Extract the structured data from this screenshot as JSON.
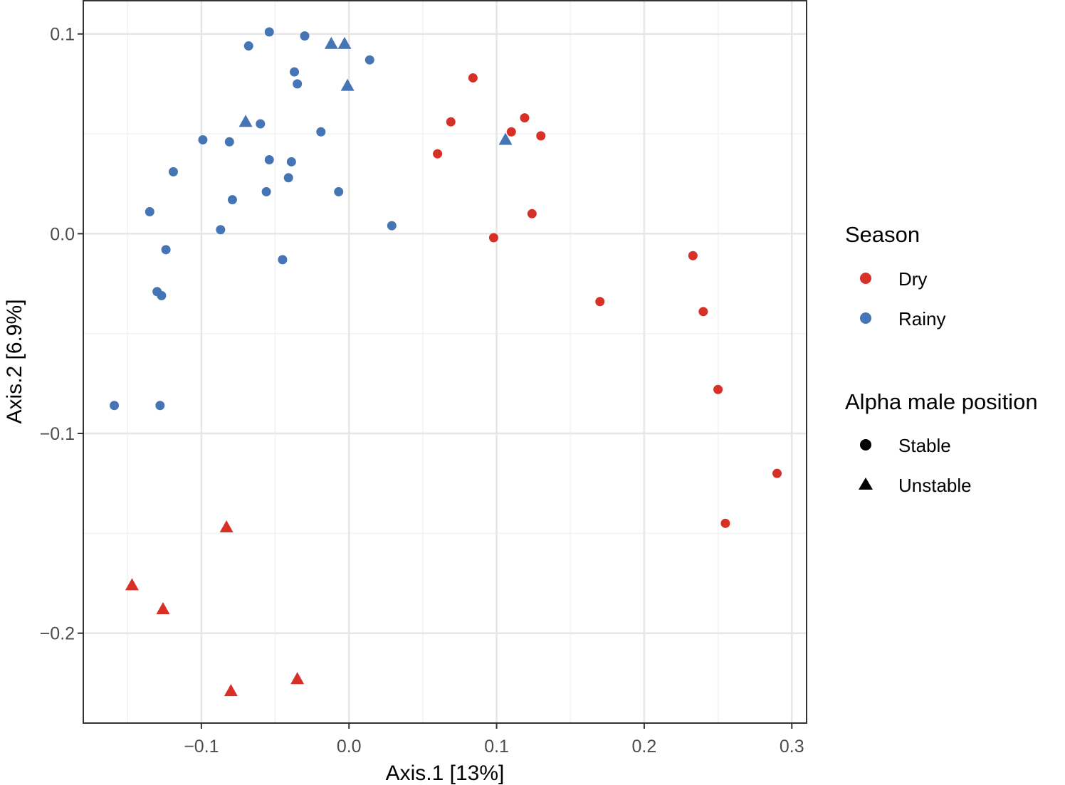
{
  "chart_data": {
    "type": "scatter",
    "title": "",
    "xlabel": "Axis.1   [13%]",
    "ylabel": "Axis.2   [6.9%]",
    "xlim": [
      -0.18,
      0.31
    ],
    "ylim": [
      -0.245,
      0.117
    ],
    "x_ticks": [
      -0.1,
      0.0,
      0.1,
      0.2,
      0.3
    ],
    "x_tick_labels": [
      "−0.1",
      "0.0",
      "0.1",
      "0.2",
      "0.3"
    ],
    "y_ticks": [
      -0.2,
      -0.1,
      0.0,
      0.1
    ],
    "y_tick_labels": [
      "−0.2",
      "−0.1",
      "0.0",
      "0.1"
    ],
    "grid": true,
    "colors": {
      "Dry": "#d73027",
      "Rainy": "#4575b4"
    },
    "legend": {
      "placement": "right",
      "season": {
        "title": "Season",
        "items": [
          "Dry",
          "Rainy"
        ]
      },
      "position": {
        "title": "Alpha male position",
        "items": [
          "Stable",
          "Unstable"
        ]
      }
    },
    "series": [
      {
        "name": "Rainy-Stable",
        "season": "Rainy",
        "shape": "Stable",
        "points": [
          [
            -0.054,
            0.101
          ],
          [
            -0.03,
            0.099
          ],
          [
            -0.068,
            0.094
          ],
          [
            0.014,
            0.087
          ],
          [
            -0.037,
            0.081
          ],
          [
            -0.035,
            0.075
          ],
          [
            -0.06,
            0.055
          ],
          [
            -0.019,
            0.051
          ],
          [
            -0.099,
            0.047
          ],
          [
            -0.081,
            0.046
          ],
          [
            -0.054,
            0.037
          ],
          [
            -0.039,
            0.036
          ],
          [
            -0.119,
            0.031
          ],
          [
            -0.041,
            0.028
          ],
          [
            -0.056,
            0.021
          ],
          [
            -0.007,
            0.021
          ],
          [
            -0.079,
            0.017
          ],
          [
            -0.135,
            0.011
          ],
          [
            -0.087,
            0.002
          ],
          [
            0.029,
            0.004
          ],
          [
            -0.124,
            -0.008
          ],
          [
            -0.045,
            -0.013
          ],
          [
            -0.13,
            -0.029
          ],
          [
            -0.127,
            -0.031
          ],
          [
            -0.159,
            -0.086
          ],
          [
            -0.128,
            -0.086
          ]
        ]
      },
      {
        "name": "Rainy-Unstable",
        "season": "Rainy",
        "shape": "Unstable",
        "points": [
          [
            -0.012,
            0.095
          ],
          [
            -0.003,
            0.095
          ],
          [
            -0.001,
            0.074
          ],
          [
            -0.07,
            0.056
          ],
          [
            0.106,
            0.047
          ]
        ]
      },
      {
        "name": "Dry-Stable",
        "season": "Dry",
        "shape": "Stable",
        "points": [
          [
            0.084,
            0.078
          ],
          [
            0.119,
            0.058
          ],
          [
            0.069,
            0.056
          ],
          [
            0.11,
            0.051
          ],
          [
            0.13,
            0.049
          ],
          [
            0.06,
            0.04
          ],
          [
            0.124,
            0.01
          ],
          [
            0.098,
            -0.002
          ],
          [
            0.233,
            -0.011
          ],
          [
            0.17,
            -0.034
          ],
          [
            0.24,
            -0.039
          ],
          [
            0.25,
            -0.078
          ],
          [
            0.29,
            -0.12
          ],
          [
            0.255,
            -0.145
          ]
        ]
      },
      {
        "name": "Dry-Unstable",
        "season": "Dry",
        "shape": "Unstable",
        "points": [
          [
            -0.083,
            -0.147
          ],
          [
            -0.147,
            -0.176
          ],
          [
            -0.126,
            -0.188
          ],
          [
            -0.035,
            -0.223
          ],
          [
            -0.08,
            -0.229
          ]
        ]
      }
    ]
  }
}
